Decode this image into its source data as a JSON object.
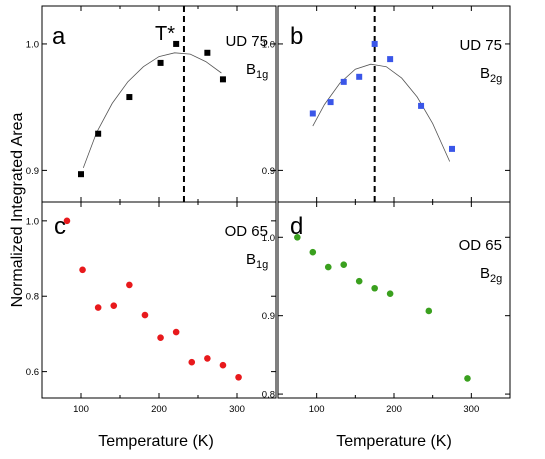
{
  "ylabel": "Normalized Integrated Area",
  "xlabel": "Temperature (K)",
  "chart_data": [
    {
      "type": "scatter",
      "panel": "a",
      "sample": "UD 75",
      "mode_main": "B",
      "mode_sub": "1g",
      "annotation": "T*",
      "ylim": [
        0.875,
        1.03
      ],
      "yticks": [
        "0.9",
        "1.0"
      ],
      "ytick_values": [
        0.9,
        1.0
      ],
      "xlim": [
        50,
        350
      ],
      "marker": "square",
      "color": "#000000",
      "series": [
        {
          "x": [
            100,
            122,
            162,
            202,
            222,
            262,
            282
          ],
          "y": [
            0.897,
            0.929,
            0.958,
            0.985,
            1.0,
            0.993,
            0.972
          ]
        }
      ],
      "fit": {
        "x": [
          103,
          120,
          140,
          160,
          180,
          200,
          220,
          240,
          260,
          280
        ],
        "y": [
          0.902,
          0.93,
          0.953,
          0.97,
          0.982,
          0.99,
          0.993,
          0.992,
          0.986,
          0.977
        ]
      },
      "vline_x": 232
    },
    {
      "type": "scatter",
      "panel": "b",
      "sample": "UD 75",
      "mode_main": "B",
      "mode_sub": "2g",
      "ylim": [
        0.875,
        1.03
      ],
      "yticks": [
        "0.9",
        "1.0"
      ],
      "ytick_values": [
        0.9,
        1.0
      ],
      "xlim": [
        50,
        350
      ],
      "marker": "square",
      "color": "#3a56e8",
      "series": [
        {
          "x": [
            95,
            118,
            135,
            155,
            175,
            195,
            235,
            275
          ],
          "y": [
            0.945,
            0.954,
            0.97,
            0.974,
            1.0,
            0.988,
            0.951,
            0.917
          ]
        }
      ],
      "fit": {
        "x": [
          95,
          110,
          130,
          150,
          170,
          190,
          210,
          230,
          250,
          272
        ],
        "y": [
          0.935,
          0.952,
          0.969,
          0.98,
          0.984,
          0.982,
          0.973,
          0.958,
          0.937,
          0.907
        ]
      },
      "vline_x": 175
    },
    {
      "type": "scatter",
      "panel": "c",
      "sample": "OD 65",
      "mode_main": "B",
      "mode_sub": "1g",
      "ylim": [
        0.53,
        1.05
      ],
      "yticks": [
        "0.6",
        "0.8",
        "1.0"
      ],
      "ytick_values": [
        0.6,
        0.8,
        1.0
      ],
      "xlim": [
        50,
        350
      ],
      "xticks": [
        "100",
        "200",
        "300"
      ],
      "xtick_values": [
        100,
        200,
        300
      ],
      "marker": "circle",
      "color": "#e8191c",
      "series": [
        {
          "x": [
            82,
            102,
            122,
            142,
            162,
            182,
            202,
            222,
            242,
            262,
            282,
            302
          ],
          "y": [
            1.0,
            0.87,
            0.77,
            0.775,
            0.83,
            0.75,
            0.69,
            0.705,
            0.625,
            0.635,
            0.617,
            0.585
          ]
        }
      ]
    },
    {
      "type": "scatter",
      "panel": "d",
      "sample": "OD 65",
      "mode_main": "B",
      "mode_sub": "2g",
      "ylim": [
        0.795,
        1.045
      ],
      "yticks": [
        "0.8",
        "0.9",
        "1.0"
      ],
      "ytick_values": [
        0.8,
        0.9,
        1.0
      ],
      "xlim": [
        50,
        350
      ],
      "xticks": [
        "100",
        "200",
        "300"
      ],
      "xtick_values": [
        100,
        200,
        300
      ],
      "marker": "circle",
      "color": "#3aa01e",
      "series": [
        {
          "x": [
            75,
            95,
            115,
            135,
            155,
            175,
            195,
            245,
            295
          ],
          "y": [
            1.0,
            0.981,
            0.962,
            0.965,
            0.944,
            0.935,
            0.928,
            0.906,
            0.82
          ]
        }
      ]
    }
  ]
}
